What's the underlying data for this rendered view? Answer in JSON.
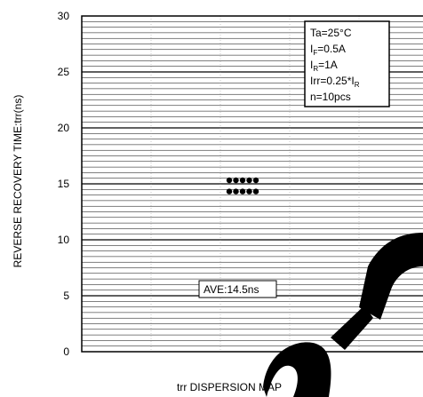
{
  "chart_data": {
    "type": "scatter",
    "title": "",
    "xlabel": "trr DISPERSION MAP",
    "ylabel": "REVERSE RECOVERY TIME:trr(ns)",
    "ylim": [
      0,
      30
    ],
    "yticks": [
      0,
      5,
      10,
      15,
      20,
      25,
      30
    ],
    "grid": true,
    "minor_grid_step": 0.5,
    "x": [
      1,
      2,
      3,
      4,
      5,
      1,
      2,
      3,
      4,
      5
    ],
    "y": [
      15,
      15,
      15,
      15,
      15,
      14,
      14,
      14,
      14,
      14
    ],
    "series": [
      {
        "values": [
          15,
          15,
          15,
          15,
          15,
          14,
          14,
          14,
          14,
          14
        ]
      }
    ],
    "conditions": [
      {
        "main": "Ta=25°C",
        "sub": "",
        "rest": ""
      },
      {
        "main": "I",
        "sub": "F",
        "rest": "=0.5A"
      },
      {
        "main": "I",
        "sub": "R",
        "rest": "=1A"
      },
      {
        "main": "Irr=0.25*I",
        "sub": "R",
        "rest": ""
      },
      {
        "main": "n=10pcs",
        "sub": "",
        "rest": ""
      }
    ],
    "average_label": "AVE:14.5ns",
    "colors": {
      "points": "#000000",
      "grid": "#000000",
      "watermark": "#000000"
    }
  }
}
